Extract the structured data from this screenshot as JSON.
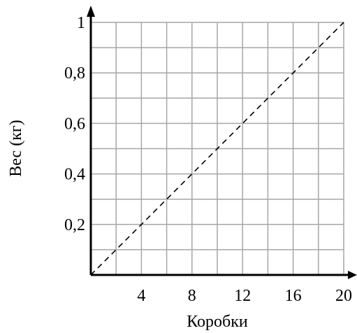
{
  "chart_data": {
    "type": "line",
    "title": "",
    "xlabel": "Коробки",
    "ylabel": "Вес (кг)",
    "xlim": [
      0,
      20
    ],
    "ylim": [
      0,
      1
    ],
    "grid": true,
    "grid_x_step": 2,
    "grid_y_step": 0.1,
    "x_ticks": [
      4,
      8,
      12,
      16,
      20
    ],
    "x_tick_labels": [
      "4",
      "8",
      "12",
      "16",
      "20"
    ],
    "y_ticks": [
      0.2,
      0.4,
      0.6,
      0.8,
      1
    ],
    "y_tick_labels": [
      "0,2",
      "0,4",
      "0,6",
      "0,8",
      "1"
    ],
    "series": [
      {
        "style": "dashed",
        "x": [
          0,
          20
        ],
        "y": [
          0,
          1
        ]
      }
    ],
    "colors": {
      "grid": "#a6a6a6",
      "axis": "#000000",
      "line": "#000000"
    }
  }
}
